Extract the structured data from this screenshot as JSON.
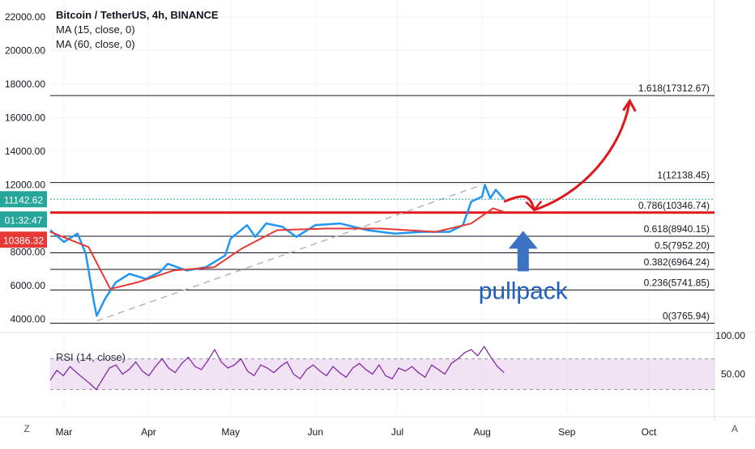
{
  "header": {
    "symbol": "Bitcoin / TetherUS, 4h, BINANCE",
    "ma1": "MA (15, close, 0)",
    "ma2": "MA (60, close, 0)",
    "rsi": "RSI (14, close)"
  },
  "colors": {
    "price_line": "#2196f3",
    "ma15": "#2d9cdb",
    "ma60": "#e53935",
    "fib_line": "#131722",
    "fib_highlight": "#e0181b",
    "rsi_line": "#7b1fa2",
    "rsi_band": "#e1bee7",
    "annotation_red": "#e0181b",
    "annotation_blue": "#1e5fbf",
    "last_price_bg": "#26a69a",
    "countdown_bg": "#26a69a",
    "ma_value_bg": "#e53935"
  },
  "chart_data": {
    "type": "line",
    "title": "Bitcoin / TetherUS, 4h, BINANCE",
    "x_ticks": [
      "Mar",
      "Apr",
      "May",
      "Jun",
      "Jul",
      "Aug",
      "Sep",
      "Oct"
    ],
    "y_ticks": [
      "22000.00",
      "20000.00",
      "18000.00",
      "16000.00",
      "14000.00",
      "12000.00",
      "8000.00",
      "6000.00",
      "4000.00"
    ],
    "ylim": [
      3500,
      23000
    ],
    "x_domain": [
      "2020-02-25",
      "2020-10-25"
    ],
    "series": [
      {
        "name": "Bitcoin / TetherUS",
        "points": [
          [
            "2020-02-25",
            9300
          ],
          [
            "2020-03-01",
            8600
          ],
          [
            "2020-03-06",
            9100
          ],
          [
            "2020-03-09",
            7900
          ],
          [
            "2020-03-12",
            5000
          ],
          [
            "2020-03-13",
            4200
          ],
          [
            "2020-03-16",
            5200
          ],
          [
            "2020-03-20",
            6200
          ],
          [
            "2020-03-25",
            6700
          ],
          [
            "2020-03-31",
            6400
          ],
          [
            "2020-04-05",
            6800
          ],
          [
            "2020-04-08",
            7300
          ],
          [
            "2020-04-15",
            6900
          ],
          [
            "2020-04-22",
            7100
          ],
          [
            "2020-04-29",
            7800
          ],
          [
            "2020-05-01",
            8800
          ],
          [
            "2020-05-07",
            9600
          ],
          [
            "2020-05-10",
            8900
          ],
          [
            "2020-05-14",
            9700
          ],
          [
            "2020-05-20",
            9500
          ],
          [
            "2020-05-25",
            8900
          ],
          [
            "2020-06-01",
            9600
          ],
          [
            "2020-06-10",
            9700
          ],
          [
            "2020-06-20",
            9300
          ],
          [
            "2020-06-30",
            9100
          ],
          [
            "2020-07-10",
            9200
          ],
          [
            "2020-07-20",
            9200
          ],
          [
            "2020-07-25",
            9600
          ],
          [
            "2020-07-28",
            11000
          ],
          [
            "2020-08-01",
            11300
          ],
          [
            "2020-08-02",
            12000
          ],
          [
            "2020-08-04",
            11200
          ],
          [
            "2020-08-06",
            11700
          ],
          [
            "2020-08-09",
            11142.62
          ]
        ]
      },
      {
        "name": "MA 60",
        "points": [
          [
            "2020-02-25",
            9200
          ],
          [
            "2020-03-10",
            8300
          ],
          [
            "2020-03-18",
            5800
          ],
          [
            "2020-03-28",
            6200
          ],
          [
            "2020-04-10",
            6900
          ],
          [
            "2020-04-25",
            7100
          ],
          [
            "2020-05-05",
            8200
          ],
          [
            "2020-05-18",
            9300
          ],
          [
            "2020-06-05",
            9400
          ],
          [
            "2020-06-25",
            9400
          ],
          [
            "2020-07-15",
            9200
          ],
          [
            "2020-07-28",
            9700
          ],
          [
            "2020-08-05",
            10600
          ],
          [
            "2020-08-09",
            10386.32
          ]
        ]
      }
    ],
    "fib_levels": [
      {
        "label": "1.618(17312.67)",
        "value": 17312.67
      },
      {
        "label": "1(12138.45)",
        "value": 12138.45
      },
      {
        "label": "0.786(10346.74)",
        "value": 10346.74
      },
      {
        "label": "0.618(8940.15)",
        "value": 8940.15
      },
      {
        "label": "0.5(7952.20)",
        "value": 7952.2
      },
      {
        "label": "0.382(6964.24)",
        "value": 6964.24
      },
      {
        "label": "0.236(5741.85)",
        "value": 5741.85
      },
      {
        "label": "0(3765.94)",
        "value": 3765.94
      }
    ],
    "price_labels": {
      "last_price": "11142.62",
      "countdown": "01:32:47",
      "ma_value": "10386.32"
    },
    "annotation": {
      "text": "pullpack"
    },
    "rsi": {
      "ylim": [
        0,
        100
      ],
      "y_ticks": [
        "100.00",
        "50.00"
      ],
      "band": [
        30,
        70
      ],
      "values": [
        42,
        55,
        48,
        60,
        52,
        45,
        38,
        30,
        44,
        58,
        62,
        50,
        56,
        66,
        54,
        48,
        60,
        70,
        58,
        52,
        64,
        72,
        60,
        56,
        68,
        82,
        66,
        58,
        62,
        70,
        54,
        48,
        62,
        58,
        52,
        60,
        66,
        50,
        44,
        56,
        62,
        54,
        48,
        60,
        52,
        46,
        58,
        64,
        56,
        50,
        62,
        48,
        44,
        58,
        54,
        60,
        52,
        46,
        62,
        56,
        50,
        64,
        70,
        78,
        82,
        74,
        86,
        72,
        60,
        52
      ]
    }
  }
}
